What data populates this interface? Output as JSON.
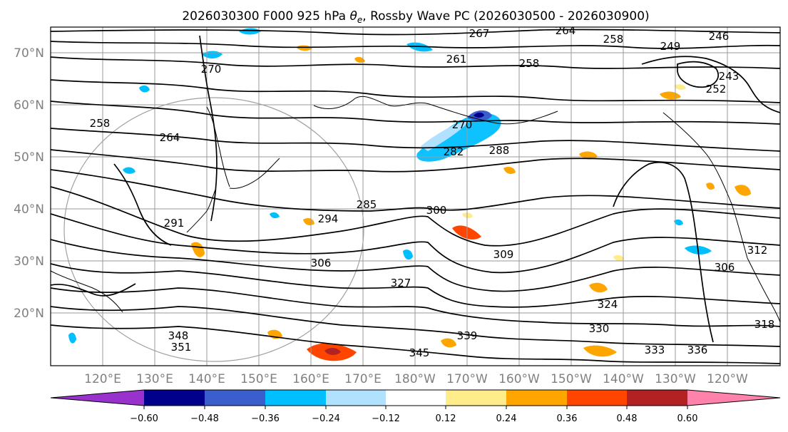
{
  "title_main": "2026030300 F000 925 hPa ",
  "title_symbol": "θ",
  "title_subscript": "e",
  "title_rest": ", Rossby Wave PC (2026030500 - 2026030900)",
  "latitude_labels": [
    "70°N",
    "60°N",
    "50°N",
    "40°N",
    "30°N",
    "20°N"
  ],
  "longitude_labels": [
    "120°E",
    "130°E",
    "140°E",
    "150°E",
    "160°E",
    "170°E",
    "180°W",
    "170°W",
    "160°W",
    "150°W",
    "140°W",
    "130°W",
    "120°W"
  ],
  "contour_labels": [
    "267",
    "264",
    "258",
    "246",
    "249",
    "261",
    "258",
    "243",
    "252",
    "270",
    "264",
    "258",
    "270",
    "282",
    "288",
    "285",
    "291",
    "294",
    "300",
    "306",
    "309",
    "312",
    "327",
    "324",
    "330",
    "333",
    "336",
    "339",
    "345",
    "348",
    "351",
    "318",
    "306"
  ],
  "colorbar": {
    "colors": [
      "#9932cc",
      "#00008b",
      "#3a5fcd",
      "#00bfff",
      "#b0e2ff",
      "#ffffff",
      "#ffec8b",
      "#ffa500",
      "#ff4500",
      "#b22222",
      "#ff82ab"
    ],
    "tick_labels": [
      "−0.60",
      "−0.48",
      "−0.36",
      "−0.24",
      "−0.12",
      "0.12",
      "0.24",
      "0.36",
      "0.48",
      "0.60"
    ]
  },
  "map_data": {
    "lat_range": [
      10,
      75
    ],
    "lon_range_east": [
      110,
      250
    ],
    "grid_lat": [
      20,
      30,
      40,
      50,
      60,
      70
    ],
    "grid_lon_east": [
      120,
      130,
      140,
      150,
      160,
      170,
      180,
      190,
      200,
      210,
      220,
      230,
      240
    ]
  }
}
